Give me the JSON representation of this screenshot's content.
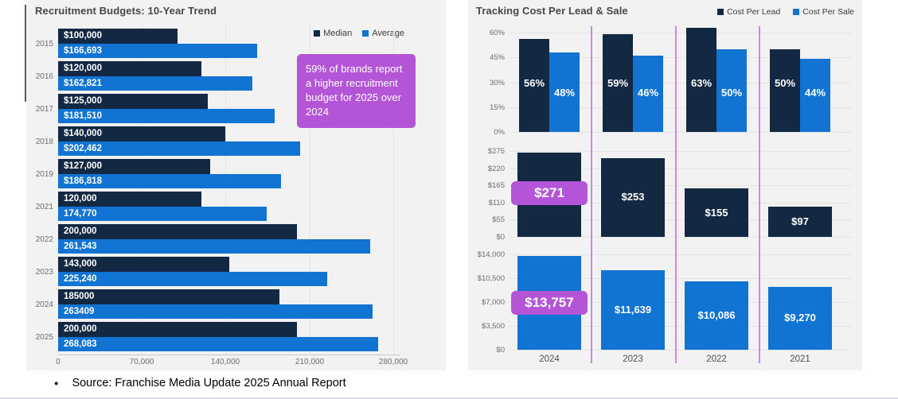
{
  "chart_data": [
    {
      "type": "bar",
      "orientation": "horizontal",
      "title": "Recruitment Budgets: 10-Year Trend",
      "categories": [
        "2015",
        "2016",
        "2017",
        "2018",
        "2019",
        "2021",
        "2022",
        "2023",
        "2024",
        "2025"
      ],
      "series": [
        {
          "name": "Median",
          "color": "#132943",
          "values": [
            100000,
            120000,
            125000,
            140000,
            127000,
            120000,
            200000,
            143000,
            185000,
            200000
          ],
          "labels": [
            "$100,000",
            "$120,000",
            "$125,000",
            "$140,000",
            "$127,000",
            "120,000",
            "200,000",
            "143,000",
            "185000",
            "200,000"
          ]
        },
        {
          "name": "Average",
          "color": "#1274d2",
          "values": [
            166693,
            162821,
            181510,
            202462,
            186818,
            174770,
            261543,
            225240,
            263409,
            268083
          ],
          "labels": [
            "$166,693",
            "$162,821",
            "$181,510",
            "$202,462",
            "$186,818",
            "174,770",
            "261,543",
            "225,240",
            "263409",
            "268,083"
          ]
        }
      ],
      "xlim": [
        0,
        280000
      ],
      "x_ticks": [
        "0",
        "70,000",
        "140,000",
        "210,000",
        "280,000"
      ],
      "legend_position": "top-right",
      "grid": "vertical",
      "annotation": "59% of brands report a higher recruitment budget for 2025 over 2024"
    },
    {
      "type": "bar",
      "title": "Tracking Cost Per Lead & Sale",
      "categories": [
        "2024",
        "2023",
        "2022",
        "2021"
      ],
      "legend": [
        {
          "label": "Cost Per Lead",
          "color": "#132943"
        },
        {
          "label": "Cost Per Sale",
          "color": "#1274d2"
        }
      ],
      "legend_position": "top-right",
      "grid": "horizontal",
      "panels": [
        {
          "name": "percent-of-brands",
          "ylim": [
            0,
            60
          ],
          "y_ticks": [
            "60%",
            "45%",
            "30%",
            "15%",
            "0%"
          ],
          "series": [
            {
              "name": "Cost Per Lead",
              "values": [
                56,
                59,
                63,
                50
              ],
              "labels": [
                "56%",
                "59%",
                "63%",
                "50%"
              ]
            },
            {
              "name": "Cost Per Sale",
              "values": [
                48,
                46,
                50,
                44
              ],
              "labels": [
                "48%",
                "46%",
                "50%",
                "44%"
              ]
            }
          ]
        },
        {
          "name": "cost-per-lead-dollars",
          "ylim": [
            0,
            275
          ],
          "y_ticks": [
            "$275",
            "$220",
            "$165",
            "$110",
            "$55",
            "$0"
          ],
          "values": [
            271,
            253,
            155,
            97
          ],
          "labels": [
            "$271",
            "$253",
            "$155",
            "$97"
          ],
          "highlight_index": 0
        },
        {
          "name": "cost-per-sale-dollars",
          "ylim": [
            0,
            14000
          ],
          "y_ticks": [
            "$14,000",
            "$10,500",
            "$7,000",
            "$3,500",
            "$0"
          ],
          "values": [
            13757,
            11639,
            10086,
            9270
          ],
          "labels": [
            "$13,757",
            "$11,639",
            "$10,086",
            "$9,270"
          ],
          "highlight_index": 0
        }
      ]
    }
  ],
  "footer": {
    "bullet": "●",
    "source": "Source: Franchise Media Update 2025 Annual Report"
  },
  "colors": {
    "lead": "#132943",
    "sale": "#1274d2",
    "highlight": "#b455d7",
    "divider": "#cd87e6",
    "panel_bg": "#f2f2f2"
  }
}
